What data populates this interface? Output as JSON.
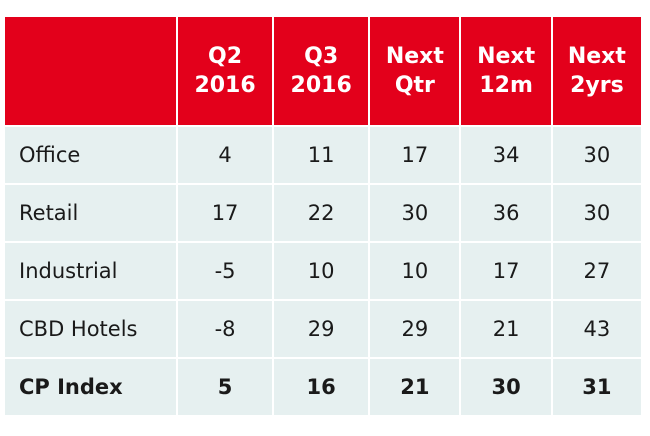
{
  "chart_data": {
    "type": "table",
    "columns": [
      "Q2\n2016",
      "Q3\n2016",
      "Next\nQtr",
      "Next\n12m",
      "Next\n2yrs"
    ],
    "rows": [
      {
        "label": "Office",
        "values": [
          "4",
          "11",
          "17",
          "34",
          "30"
        ]
      },
      {
        "label": "Retail",
        "values": [
          "17",
          "22",
          "30",
          "36",
          "30"
        ]
      },
      {
        "label": "Industrial",
        "values": [
          "-5",
          "10",
          "10",
          "17",
          "27"
        ]
      },
      {
        "label": "CBD Hotels",
        "values": [
          "-8",
          "29",
          "29",
          "21",
          "43"
        ]
      },
      {
        "label": "CP Index",
        "values": [
          "5",
          "16",
          "21",
          "30",
          "31"
        ]
      }
    ],
    "header_color": "#e3001b",
    "row_color": "#e6f0f0"
  }
}
